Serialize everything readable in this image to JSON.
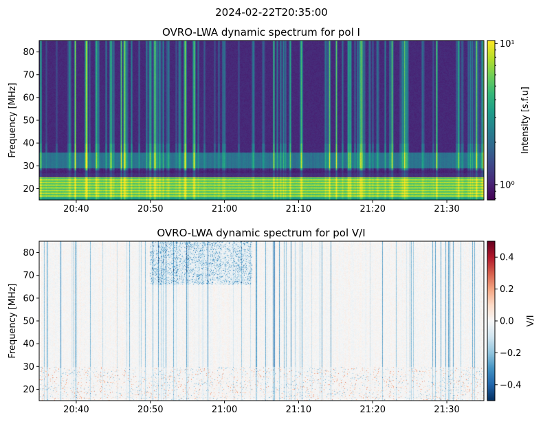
{
  "figure_title": "2024-02-22T20:35:00",
  "colors": {
    "background": "#ffffff",
    "axis": "#000000",
    "viridis": [
      "#440154",
      "#482878",
      "#3e4989",
      "#31688e",
      "#26828e",
      "#1f9e89",
      "#35b779",
      "#6ece58",
      "#b5de2b",
      "#fde725"
    ],
    "rdbu_r": [
      "#053061",
      "#2166ac",
      "#4393c3",
      "#92c5de",
      "#d1e5f0",
      "#f7f7f7",
      "#fddbc7",
      "#f4a582",
      "#d6604d",
      "#b2182b",
      "#67001f"
    ]
  },
  "chart_data": [
    {
      "type": "heatmap",
      "title": "OVRO-LWA dynamic spectrum for pol I",
      "xlabel": "",
      "ylabel": "Frequency [MHz]",
      "x_range": [
        "20:35",
        "21:35"
      ],
      "xticks": [
        "20:40",
        "20:50",
        "21:00",
        "21:10",
        "21:20",
        "21:30"
      ],
      "ylim": [
        15,
        85
      ],
      "yticks": [
        20,
        30,
        40,
        50,
        60,
        70,
        80
      ],
      "colorbar": {
        "label": "Intensity [s.f.u]",
        "scale": "log",
        "range": [
          0.78,
          10.5
        ],
        "colormap": "viridis",
        "ticks": [
          {
            "value": 1,
            "label": "10⁰"
          },
          {
            "value": 10,
            "label": "10¹"
          }
        ]
      }
    },
    {
      "type": "heatmap",
      "title": "OVRO-LWA dynamic spectrum for pol V/I",
      "xlabel": "",
      "ylabel": "Frequency [MHz]",
      "x_range": [
        "20:35",
        "21:35"
      ],
      "xticks": [
        "20:40",
        "20:50",
        "21:00",
        "21:10",
        "21:20",
        "21:30"
      ],
      "ylim": [
        15,
        85
      ],
      "yticks": [
        20,
        30,
        40,
        50,
        60,
        70,
        80
      ],
      "colorbar": {
        "label": "V/I",
        "scale": "linear",
        "range": [
          -0.5,
          0.5
        ],
        "colormap": "RdBu_r",
        "ticks": [
          {
            "value": 0.4,
            "label": "0.4"
          },
          {
            "value": 0.2,
            "label": "0.2"
          },
          {
            "value": 0.0,
            "label": "0.0"
          },
          {
            "value": -0.2,
            "label": "−0.2"
          },
          {
            "value": -0.4,
            "label": "−0.4"
          }
        ]
      }
    }
  ]
}
